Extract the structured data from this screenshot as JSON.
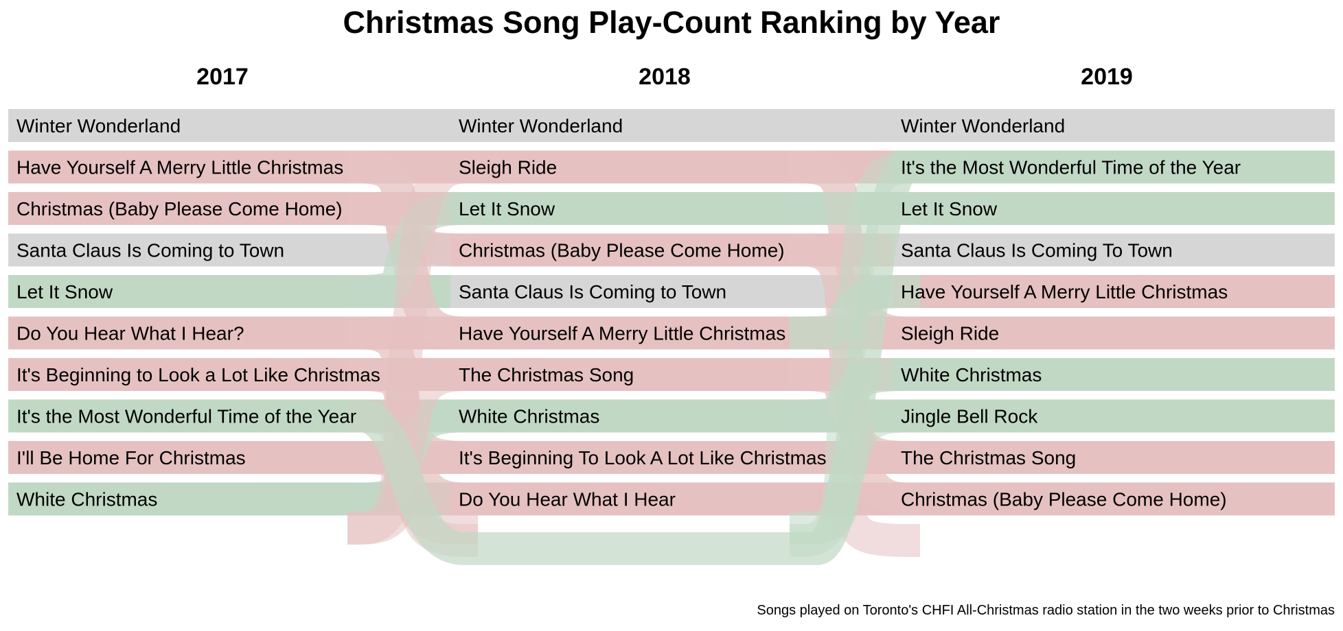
{
  "chart_data": {
    "type": "bump",
    "title": "Christmas Song Play-Count Ranking by Year",
    "note": "Songs played on Toronto's CHFI All-Christmas radio station in the two weeks prior to Christmas",
    "colors": {
      "unchanged": "#d6d6d6",
      "down": "#e6c1c1",
      "up": "#c1d8c5"
    },
    "columns": [
      {
        "year": "2017",
        "songs": [
          {
            "label": "Winter Wonderland",
            "status": "unchanged"
          },
          {
            "label": "Have Yourself A Merry Little Christmas",
            "status": "down"
          },
          {
            "label": "Christmas (Baby Please Come Home)",
            "status": "down"
          },
          {
            "label": "Santa Claus Is Coming to Town",
            "status": "unchanged"
          },
          {
            "label": "Let It Snow",
            "status": "up"
          },
          {
            "label": "Do You Hear What I Hear?",
            "status": "down"
          },
          {
            "label": "It's Beginning to Look a Lot Like Christmas",
            "status": "down"
          },
          {
            "label": "It's the Most Wonderful Time of the Year",
            "status": "up"
          },
          {
            "label": "I'll Be Home For Christmas",
            "status": "down"
          },
          {
            "label": "White Christmas",
            "status": "up"
          }
        ]
      },
      {
        "year": "2018",
        "songs": [
          {
            "label": "Winter Wonderland",
            "status": "unchanged"
          },
          {
            "label": "Sleigh Ride",
            "status": "down"
          },
          {
            "label": "Let It Snow",
            "status": "up"
          },
          {
            "label": "Christmas (Baby Please Come Home)",
            "status": "down"
          },
          {
            "label": "Santa Claus Is Coming to Town",
            "status": "unchanged"
          },
          {
            "label": "Have Yourself A Merry Little Christmas",
            "status": "down"
          },
          {
            "label": "The Christmas Song",
            "status": "down"
          },
          {
            "label": "White Christmas",
            "status": "up"
          },
          {
            "label": "It's Beginning To Look A Lot Like Christmas",
            "status": "down"
          },
          {
            "label": "Do You Hear What I Hear",
            "status": "down"
          }
        ]
      },
      {
        "year": "2019",
        "songs": [
          {
            "label": "Winter Wonderland",
            "status": "unchanged"
          },
          {
            "label": "It's the Most Wonderful Time of the Year",
            "status": "up"
          },
          {
            "label": "Let It Snow",
            "status": "up"
          },
          {
            "label": "Santa Claus Is Coming To Town",
            "status": "unchanged"
          },
          {
            "label": "Have Yourself A Merry Little Christmas",
            "status": "down"
          },
          {
            "label": "Sleigh Ride",
            "status": "down"
          },
          {
            "label": "White Christmas",
            "status": "up"
          },
          {
            "label": "Jingle Bell Rock",
            "status": "up"
          },
          {
            "label": "The Christmas Song",
            "status": "down"
          },
          {
            "label": "Christmas (Baby Please Come Home)",
            "status": "down"
          }
        ]
      }
    ],
    "transitions": [
      {
        "from_year": "2017",
        "to_year": "2018",
        "links": [
          {
            "from": 2,
            "to": 6,
            "status": "down"
          },
          {
            "from": 3,
            "to": 4,
            "status": "down"
          },
          {
            "from": 5,
            "to": 3,
            "status": "up"
          },
          {
            "from": 6,
            "to": 10,
            "status": "down"
          },
          {
            "from": 7,
            "to": 9,
            "status": "down"
          },
          {
            "from": 8,
            "to": 11,
            "status": "down"
          },
          {
            "from": 9,
            "to": 10.7,
            "status": "down"
          },
          {
            "from": 10,
            "to": 8,
            "status": "up"
          },
          {
            "from": 10.7,
            "to": 2,
            "status": "down"
          },
          {
            "from": 10.7,
            "to": 7,
            "status": "down"
          }
        ]
      },
      {
        "from_year": "2018",
        "to_year": "2019",
        "links": [
          {
            "from": 2,
            "to": 6,
            "status": "down"
          },
          {
            "from": 3,
            "to": 3,
            "status": "up"
          },
          {
            "from": 4,
            "to": 10,
            "status": "down"
          },
          {
            "from": 6,
            "to": 5,
            "status": "up"
          },
          {
            "from": 7,
            "to": 9,
            "status": "down"
          },
          {
            "from": 8,
            "to": 7,
            "status": "up"
          },
          {
            "from": 10,
            "to": 11,
            "status": "down"
          },
          {
            "from": 11,
            "to": 2,
            "status": "up"
          },
          {
            "from": 10.7,
            "to": 8,
            "status": "up"
          }
        ]
      }
    ]
  }
}
